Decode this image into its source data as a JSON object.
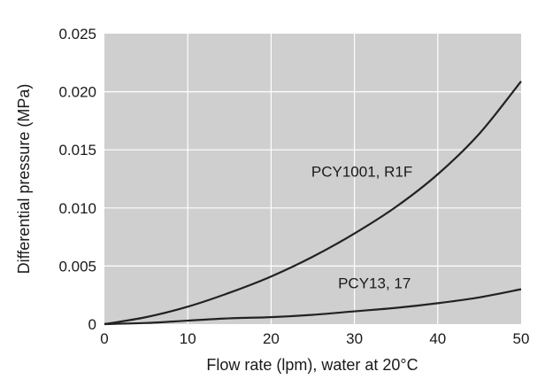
{
  "chart_data": {
    "type": "line",
    "xlabel": "Flow rate (lpm), water at 20°C",
    "ylabel": "Differential pressure (MPa)",
    "xlim": [
      0,
      50
    ],
    "ylim": [
      0,
      0.025
    ],
    "x_ticks": [
      0,
      10,
      20,
      30,
      40,
      50
    ],
    "x_tick_labels": [
      "0",
      "10",
      "20",
      "30",
      "40",
      "50"
    ],
    "y_ticks": [
      0,
      0.005,
      0.01,
      0.015,
      0.02,
      0.025
    ],
    "y_tick_labels": [
      "0",
      "0.005",
      "0.010",
      "0.015",
      "0.020",
      "0.025"
    ],
    "grid": true,
    "plot_background": "#cfcfcf",
    "grid_color": "#ffffff",
    "line_color": "#222222",
    "series": [
      {
        "name": "PCY1001, R1F",
        "x": [
          0,
          5,
          10,
          15,
          20,
          25,
          30,
          35,
          40,
          45,
          50
        ],
        "y": [
          0,
          0.0006,
          0.0015,
          0.0027,
          0.0041,
          0.0058,
          0.0078,
          0.0101,
          0.0129,
          0.0164,
          0.0209
        ]
      },
      {
        "name": "PCY13, 17",
        "x": [
          0,
          5,
          10,
          15,
          20,
          25,
          30,
          35,
          40,
          45,
          50
        ],
        "y": [
          0,
          0.0001,
          0.0003,
          0.0005,
          0.0006,
          0.0008,
          0.0011,
          0.0014,
          0.0018,
          0.0023,
          0.003
        ]
      }
    ],
    "annotations": [
      {
        "series_index": 0,
        "text": "PCY1001, R1F",
        "x": 30.9,
        "y": 0.0127
      },
      {
        "series_index": 1,
        "text": "PCY13, 17",
        "x": 32.4,
        "y": 0.0031
      }
    ]
  }
}
